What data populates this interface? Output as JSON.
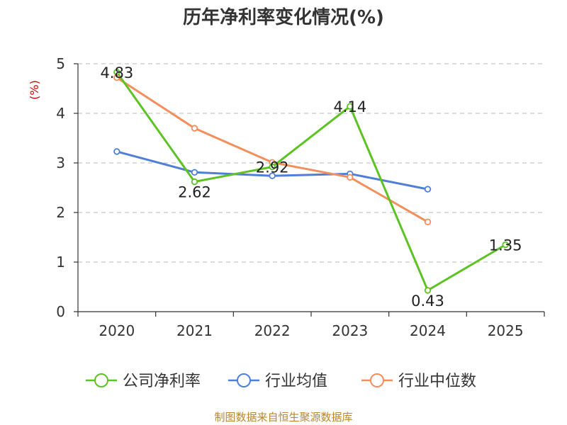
{
  "chart_data": {
    "type": "line",
    "title": "历年净利率变化情况(%)",
    "ylabel": "(%)",
    "xlabel": "",
    "categories": [
      "2020",
      "2021",
      "2022",
      "2023",
      "2024",
      "2025"
    ],
    "ylim": [
      0,
      5
    ],
    "yticks": [
      "0",
      "1",
      "2",
      "3",
      "4",
      "5"
    ],
    "grid": true,
    "legend_position": "bottom",
    "series": [
      {
        "name": "公司净利率",
        "color": "#5cc323",
        "values": [
          4.83,
          2.62,
          2.92,
          4.14,
          0.43,
          1.35
        ],
        "labels": [
          "4.83",
          "2.62",
          "2.92",
          "4.14",
          "0.43",
          "1.35"
        ]
      },
      {
        "name": "行业均值",
        "color": "#4f7fd9",
        "values": [
          3.23,
          2.81,
          2.74,
          2.78,
          2.47,
          null
        ]
      },
      {
        "name": "行业中位数",
        "color": "#f48e5b",
        "values": [
          4.72,
          3.7,
          3.01,
          2.71,
          1.81,
          null
        ]
      }
    ]
  },
  "footer": {
    "source": "制图数据来自恒生聚源数据库"
  }
}
